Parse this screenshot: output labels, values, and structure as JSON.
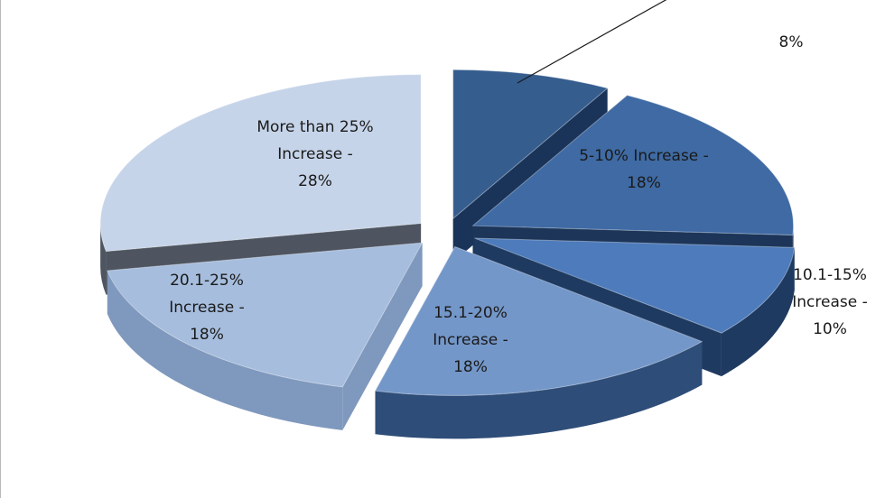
{
  "chart_data": {
    "type": "pie",
    "style": "3d-exploded",
    "legend": "none",
    "slices": [
      {
        "lines": [
          "",
          "8%"
        ],
        "value": 8,
        "colors": {
          "top": "#355d8e",
          "side": "#1a3358"
        }
      },
      {
        "lines": [
          "5-10% Increase -",
          "18%"
        ],
        "value": 18,
        "colors": {
          "top": "#3f6aa3",
          "side": "#1c3559"
        }
      },
      {
        "lines": [
          "10.1-15%",
          "Increase -",
          "10%"
        ],
        "value": 10,
        "colors": {
          "top": "#4d7bbb",
          "side": "#1f3a60"
        }
      },
      {
        "lines": [
          "15.1-20%",
          "Increase -",
          "18%"
        ],
        "value": 18,
        "colors": {
          "top": "#7497c9",
          "side": "#2e4d78"
        }
      },
      {
        "lines": [
          "20.1-25%",
          "Increase -",
          "18%"
        ],
        "value": 18,
        "colors": {
          "top": "#a6bddd",
          "side": "#7f98bd"
        }
      },
      {
        "lines": [
          "More than 25%",
          "Increase -",
          "28%"
        ],
        "value": 28,
        "colors": {
          "top": "#c6d4e9",
          "side": "#4e5560"
        }
      }
    ]
  }
}
